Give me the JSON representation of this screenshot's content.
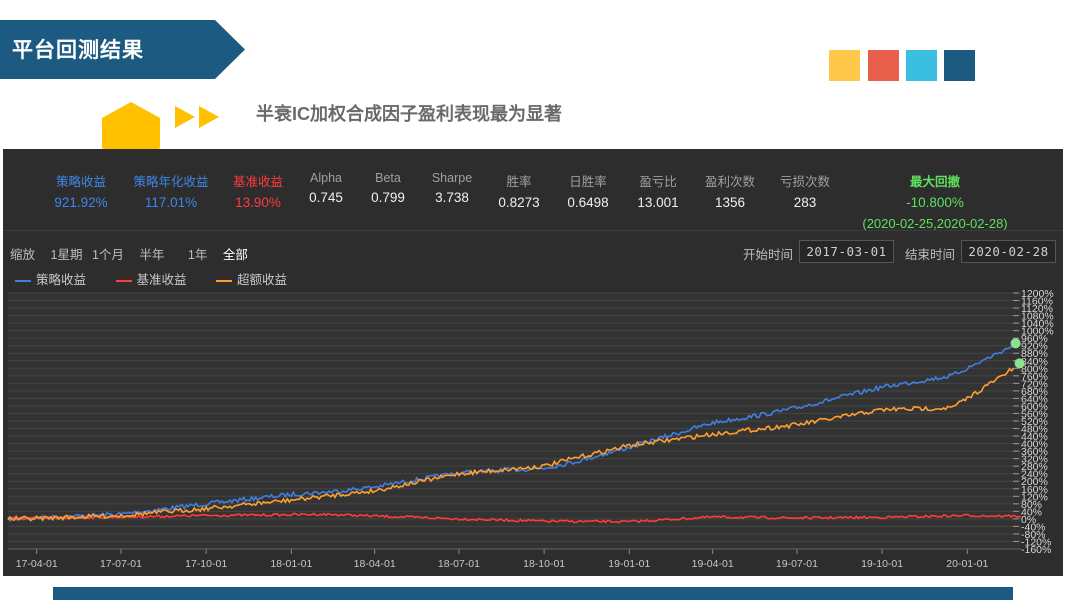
{
  "header": {
    "title": "平台回测结果",
    "subtitle": "半衰IC加权合成因子盈利表现最为显著"
  },
  "colors": {
    "banner": "#1d5a82",
    "hexagon": "#ffc000",
    "swatches": [
      "#ffc84a",
      "#e8604c",
      "#3bbfe0",
      "#1d5a82"
    ],
    "strategy": "#3f7fe0",
    "benchmark": "#ff3b3b",
    "excess": "#ff9f30",
    "max_dd_dot": "#8de08d"
  },
  "stats": [
    {
      "label": "策略收益",
      "value": "921.92%",
      "style": "blue"
    },
    {
      "label": "策略年化收益",
      "value": "117.01%",
      "style": "blue"
    },
    {
      "label": "基准收益",
      "value": "13.90%",
      "style": "red"
    },
    {
      "label": "Alpha",
      "value": "0.745",
      "style": "normal"
    },
    {
      "label": "Beta",
      "value": "0.799",
      "style": "normal"
    },
    {
      "label": "Sharpe",
      "value": "3.738",
      "style": "normal"
    },
    {
      "label": "胜率",
      "value": "0.8273",
      "style": "normal"
    },
    {
      "label": "日胜率",
      "value": "0.6498",
      "style": "normal"
    },
    {
      "label": "盈亏比",
      "value": "13.001",
      "style": "normal"
    },
    {
      "label": "盈利次数",
      "value": "1356",
      "style": "normal"
    },
    {
      "label": "亏损次数",
      "value": "283",
      "style": "normal"
    }
  ],
  "max_drawdown": {
    "label": "最大回撤",
    "value": "-10.800%",
    "range": "(2020-02-25,2020-02-28)"
  },
  "zoom": {
    "label": "缩放",
    "options": [
      "1星期",
      "1个月",
      "半年",
      "1年",
      "全部"
    ]
  },
  "dates": {
    "start_label": "开始时间",
    "start_value": "2017-03-01",
    "end_label": "结束时间",
    "end_value": "2020-02-28"
  },
  "legend": [
    "策略收益",
    "基准收益",
    "超额收益"
  ],
  "chart_data": {
    "type": "line",
    "x_ticks": [
      "17-04-01",
      "17-07-01",
      "17-10-01",
      "18-01-01",
      "18-04-01",
      "18-07-01",
      "18-10-01",
      "19-01-01",
      "19-04-01",
      "19-07-01",
      "19-10-01",
      "20-01-01"
    ],
    "y_ticks": [
      "-160%",
      "-120%",
      "-80%",
      "-40%",
      "0%",
      "40%",
      "80%",
      "120%",
      "160%",
      "200%",
      "240%",
      "280%",
      "320%",
      "360%",
      "400%",
      "440%",
      "480%",
      "520%",
      "560%",
      "600%",
      "640%",
      "680%",
      "720%",
      "760%",
      "800%",
      "840%",
      "880%",
      "920%",
      "960%",
      "1000%",
      "1040%",
      "1080%",
      "1120%",
      "1160%",
      "1200%"
    ],
    "ylim": [
      -160,
      1200
    ],
    "series": [
      {
        "name": "策略收益",
        "color": "#3f7fe0",
        "points": [
          [
            "17-03-01",
            0
          ],
          [
            "17-04-01",
            5
          ],
          [
            "17-07-01",
            25
          ],
          [
            "17-10-01",
            80
          ],
          [
            "18-01-01",
            130
          ],
          [
            "18-02-15",
            145
          ],
          [
            "18-04-01",
            170
          ],
          [
            "18-07-01",
            245
          ],
          [
            "18-10-01",
            270
          ],
          [
            "18-11-01",
            300
          ],
          [
            "19-01-01",
            380
          ],
          [
            "19-04-01",
            510
          ],
          [
            "19-06-01",
            560
          ],
          [
            "19-07-01",
            590
          ],
          [
            "19-10-01",
            700
          ],
          [
            "19-12-15",
            760
          ],
          [
            "20-01-01",
            800
          ],
          [
            "20-02-20",
            921.92
          ]
        ]
      },
      {
        "name": "基准收益",
        "color": "#ff3b3b",
        "points": [
          [
            "17-03-01",
            0
          ],
          [
            "17-04-01",
            3
          ],
          [
            "17-07-01",
            10
          ],
          [
            "17-10-01",
            18
          ],
          [
            "18-01-01",
            22
          ],
          [
            "18-02-01",
            25
          ],
          [
            "18-04-01",
            15
          ],
          [
            "18-07-01",
            0
          ],
          [
            "18-10-01",
            -12
          ],
          [
            "19-01-01",
            -15
          ],
          [
            "19-04-01",
            10
          ],
          [
            "19-07-01",
            5
          ],
          [
            "19-10-01",
            8
          ],
          [
            "20-01-01",
            18
          ],
          [
            "20-02-28",
            13.9
          ]
        ]
      },
      {
        "name": "超额收益",
        "color": "#ff9f30",
        "points": [
          [
            "17-03-01",
            0
          ],
          [
            "17-04-01",
            3
          ],
          [
            "17-07-01",
            18
          ],
          [
            "17-10-01",
            55
          ],
          [
            "18-01-01",
            100
          ],
          [
            "18-04-01",
            150
          ],
          [
            "18-07-01",
            240
          ],
          [
            "18-10-01",
            280
          ],
          [
            "18-11-01",
            320
          ],
          [
            "19-01-01",
            390
          ],
          [
            "19-04-01",
            450
          ],
          [
            "19-07-01",
            500
          ],
          [
            "19-10-01",
            580
          ],
          [
            "19-12-15",
            590
          ],
          [
            "20-01-01",
            640
          ],
          [
            "20-02-20",
            800
          ]
        ]
      }
    ]
  }
}
